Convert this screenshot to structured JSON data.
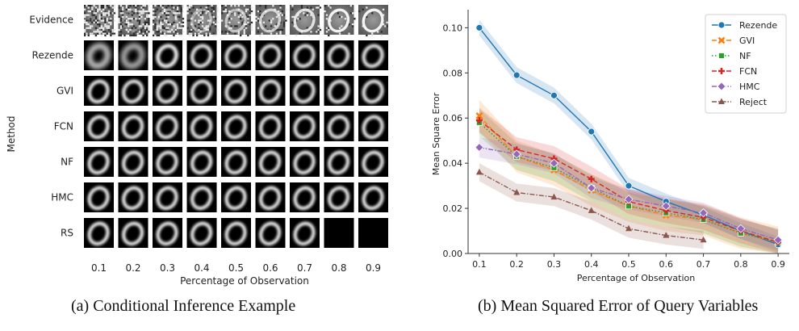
{
  "captions": {
    "a": "(a) Conditional Inference Example",
    "b": "(b) Mean Squared Error of Query Variables"
  },
  "grid": {
    "ylabel": "Method",
    "xlabel": "Percentage of Observation",
    "rows": [
      "Evidence",
      "Rezende",
      "GVI",
      "FCN",
      "NF",
      "HMC",
      "RS"
    ],
    "cols": [
      "0.1",
      "0.2",
      "0.3",
      "0.4",
      "0.5",
      "0.6",
      "0.7",
      "0.8",
      "0.9"
    ],
    "missing": [
      {
        "row": "RS",
        "cols": [
          "0.8",
          "0.9"
        ]
      }
    ]
  },
  "chart_data": {
    "type": "line",
    "xlabel": "Percentage of Observation",
    "ylabel": "Mean Square Error",
    "x": [
      0.1,
      0.2,
      0.3,
      0.4,
      0.5,
      0.6,
      0.7,
      0.8,
      0.9
    ],
    "xticks": [
      "0.1",
      "0.2",
      "0.3",
      "0.4",
      "0.5",
      "0.6",
      "0.7",
      "0.8",
      "0.9"
    ],
    "yticks": [
      "0.00",
      "0.02",
      "0.04",
      "0.06",
      "0.08",
      "0.10"
    ],
    "ylim": [
      0.0,
      0.108
    ],
    "legend_position": "top-right",
    "series": [
      {
        "name": "Rezende",
        "color": "#1f77b4",
        "marker": "circle",
        "dash": "solid",
        "values": [
          0.1,
          0.079,
          0.07,
          0.054,
          0.03,
          0.023,
          0.017,
          0.01,
          0.004
        ],
        "band": 0.0035
      },
      {
        "name": "GVI",
        "color": "#ff7f0e",
        "marker": "x",
        "dash": "dashed",
        "values": [
          0.061,
          0.043,
          0.037,
          0.028,
          0.021,
          0.017,
          0.015,
          0.009,
          0.005
        ],
        "band": 0.007
      },
      {
        "name": "NF",
        "color": "#2ca02c",
        "marker": "square",
        "dash": "dotted",
        "values": [
          0.058,
          0.043,
          0.038,
          0.029,
          0.021,
          0.018,
          0.015,
          0.009,
          0.005
        ],
        "band": 0.006
      },
      {
        "name": "FCN",
        "color": "#d62728",
        "marker": "plus",
        "dash": "dashed",
        "values": [
          0.059,
          0.046,
          0.042,
          0.033,
          0.023,
          0.019,
          0.016,
          0.01,
          0.005
        ],
        "band": 0.0055
      },
      {
        "name": "HMC",
        "color": "#9467bd",
        "marker": "diamond",
        "dash": "dashdot",
        "values": [
          0.047,
          0.044,
          0.04,
          0.029,
          0.024,
          0.021,
          0.018,
          0.011,
          0.006
        ],
        "band": 0.0045
      },
      {
        "name": "Reject",
        "color": "#8c564b",
        "marker": "triangle",
        "dash": "dashdot",
        "values": [
          0.036,
          0.027,
          0.025,
          0.019,
          0.011,
          0.008,
          0.006,
          null,
          null
        ],
        "band": 0.004
      }
    ]
  }
}
